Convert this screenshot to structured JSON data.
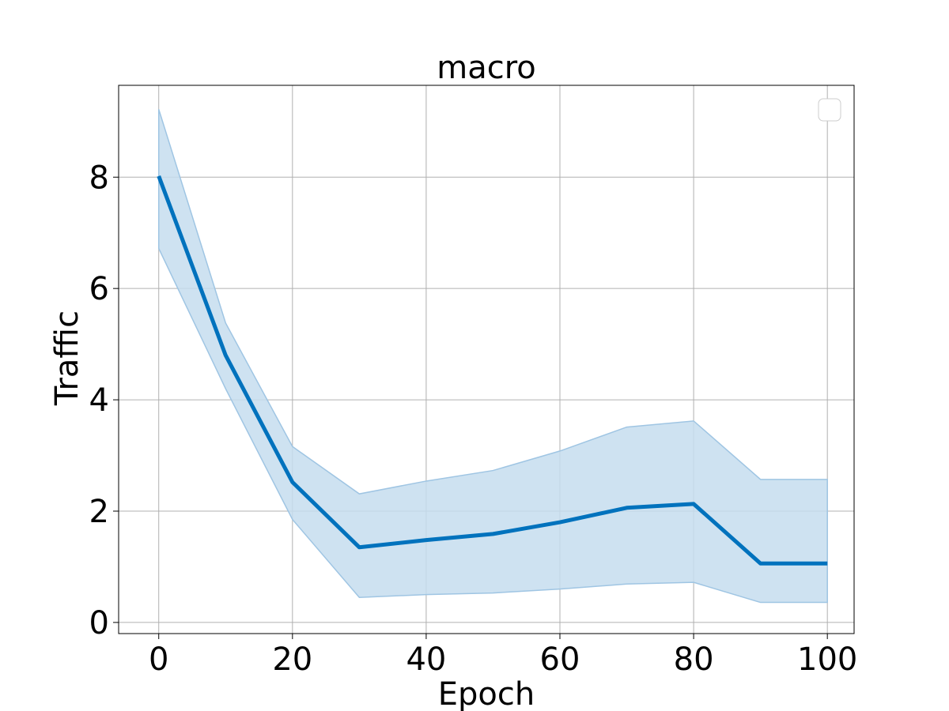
{
  "chart_data": {
    "type": "line",
    "title": "macro",
    "xlabel": "Epoch",
    "ylabel": "Traffic",
    "xlim": [
      -6,
      104
    ],
    "ylim": [
      -0.2,
      9.65
    ],
    "x_ticks": [
      0,
      20,
      40,
      60,
      80,
      100
    ],
    "y_ticks": [
      0,
      2,
      4,
      6,
      8
    ],
    "grid": true,
    "legend": {
      "placement": "upper right",
      "entries": []
    },
    "series": [
      {
        "x": [
          0,
          10,
          20,
          30,
          40,
          50,
          60,
          70,
          80,
          90,
          100
        ],
        "values": [
          8.02,
          4.8,
          2.52,
          1.35,
          1.48,
          1.59,
          1.8,
          2.06,
          2.13,
          1.06,
          1.06
        ],
        "lower": [
          6.72,
          4.2,
          1.85,
          0.45,
          0.5,
          0.53,
          0.6,
          0.69,
          0.72,
          0.36,
          0.36
        ],
        "upper": [
          9.22,
          5.38,
          3.16,
          2.31,
          2.54,
          2.73,
          3.08,
          3.51,
          3.62,
          2.57,
          2.57
        ],
        "color": "#0072bd",
        "band_color": "#c6ddef"
      }
    ]
  }
}
